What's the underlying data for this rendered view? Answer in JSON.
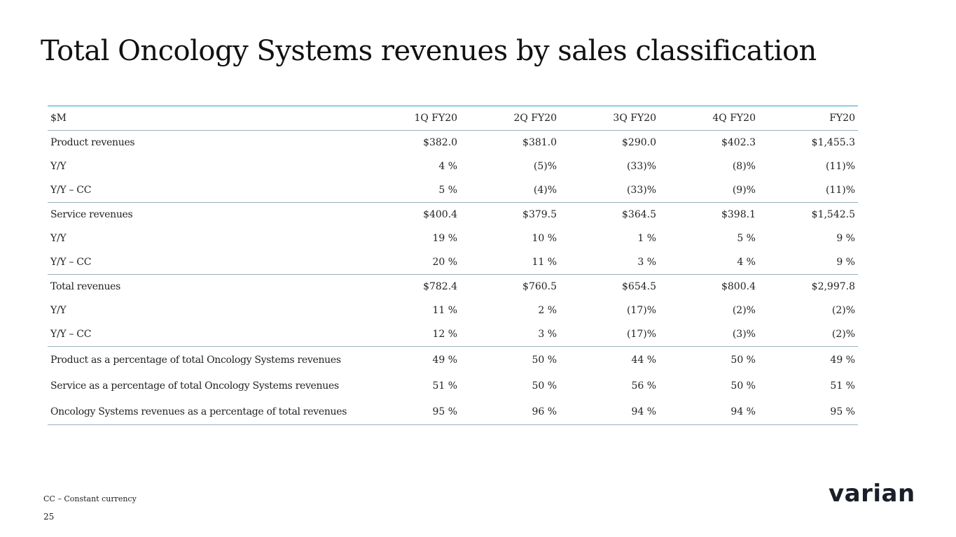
{
  "title": "Total Oncology Systems revenues by sales classification",
  "table": {
    "headers": [
      "$M",
      "1Q FY20",
      "2Q FY20",
      "3Q FY20",
      "4Q FY20",
      "FY20"
    ],
    "rows": [
      [
        "Product revenues",
        "$382.0",
        "$381.0",
        "$290.0",
        "$402.3",
        "$1,455.3"
      ],
      [
        "Y/Y",
        "4 %",
        "(5)%",
        "(33)%",
        "(8)%",
        "(11)%"
      ],
      [
        "Y/Y – CC",
        "5 %",
        "(4)%",
        "(33)%",
        "(9)%",
        "(11)%"
      ],
      [
        "Service revenues",
        "$400.4",
        "$379.5",
        "$364.5",
        "$398.1",
        "$1,542.5"
      ],
      [
        "Y/Y",
        "19 %",
        "10 %",
        "1 %",
        "5 %",
        "9 %"
      ],
      [
        "Y/Y – CC",
        "20 %",
        "11 %",
        "3 %",
        "4 %",
        "9 %"
      ],
      [
        "Total revenues",
        "$782.4",
        "$760.5",
        "$654.5",
        "$800.4",
        "$2,997.8"
      ],
      [
        "Y/Y",
        "11 %",
        "2 %",
        "(17)%",
        "(2)%",
        "(2)%"
      ],
      [
        "Y/Y – CC",
        "12 %",
        "3 %",
        "(17)%",
        "(3)%",
        "(2)%"
      ],
      [
        "Product as a percentage of total Oncology Systems revenues",
        "49 %",
        "50 %",
        "44 %",
        "50 %",
        "49 %"
      ],
      [
        "Service as a percentage of total Oncology Systems revenues",
        "51 %",
        "50 %",
        "56 %",
        "50 %",
        "51 %"
      ],
      [
        "Oncology Systems revenues as a percentage of total revenues",
        "95 %",
        "96 %",
        "94 %",
        "94 %",
        "95 %"
      ]
    ]
  },
  "footnote": "CC – Constant currency",
  "page_number": "25",
  "logo_text": "varian"
}
